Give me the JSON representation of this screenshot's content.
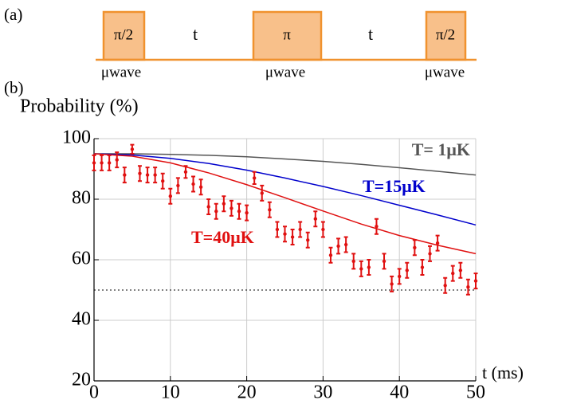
{
  "pulse_diagram": {
    "label": "(a)",
    "pulses": [
      "π/2",
      "π",
      "π/2"
    ],
    "gaps": [
      "t",
      "t"
    ],
    "pulse_labels": [
      "μwave",
      "μwave",
      "μwave"
    ]
  },
  "chart_data": {
    "type": "scatter",
    "panel_label": "(b)",
    "y_label": "Probability (%)",
    "x_label": "t (ms)",
    "xlim": [
      0,
      50
    ],
    "ylim": [
      20,
      100
    ],
    "xticks": [
      0,
      10,
      20,
      30,
      40,
      50
    ],
    "yticks": [
      20,
      40,
      60,
      80,
      100
    ],
    "grid": true,
    "reference_line": 50,
    "x": [
      0,
      5,
      10,
      15,
      20,
      25,
      30,
      35,
      40,
      45,
      50
    ],
    "series": [
      {
        "name": "T= 1μK",
        "color": "#555555",
        "values": [
          95,
          95,
          94.8,
          94.5,
          94,
          93.3,
          92.5,
          91.5,
          90.4,
          89.2,
          88
        ]
      },
      {
        "name": "T=15μK",
        "color": "#0000cc",
        "values": [
          95,
          94.6,
          93.5,
          91.8,
          89.6,
          87,
          84.2,
          81.2,
          78,
          74.8,
          71.5
        ]
      },
      {
        "name": "T=40μK",
        "color": "#e01010",
        "values": [
          95,
          94.2,
          92,
          88.7,
          84.8,
          80.5,
          76.1,
          71.8,
          68,
          64.8,
          62
        ]
      }
    ],
    "points": {
      "color": "#e01010",
      "x": [
        0,
        1,
        2,
        3,
        4,
        5,
        6,
        7,
        8,
        9,
        10,
        11,
        12,
        13,
        14,
        15,
        16,
        17,
        18,
        19,
        20,
        21,
        22,
        23,
        24,
        25,
        26,
        27,
        28,
        29,
        30,
        31,
        32,
        33,
        34,
        35,
        36,
        37,
        38,
        39,
        40,
        41,
        42,
        43,
        44,
        45,
        46,
        47,
        48,
        49,
        50
      ],
      "values": [
        92,
        92,
        92,
        93,
        88,
        96.5,
        88.5,
        88,
        88,
        86,
        81,
        84.5,
        89,
        85,
        84,
        77.5,
        76,
        78.5,
        77,
        76,
        75.5,
        87,
        82,
        76.5,
        70,
        68.5,
        67.5,
        70,
        66.5,
        73.5,
        70,
        61.5,
        64.5,
        65,
        59.5,
        57,
        57.5,
        71,
        59.5,
        52,
        54.5,
        56.5,
        64,
        57.5,
        62,
        65.5,
        51.5,
        55.5,
        56.5,
        51,
        53
      ],
      "errors": [
        2.5,
        2.5,
        2.5,
        2.5,
        2.5,
        1.5,
        2.5,
        2.5,
        2.5,
        2.5,
        2.5,
        2.5,
        2,
        2.5,
        2.5,
        2.5,
        2.5,
        2.5,
        2.5,
        2.5,
        2.5,
        2,
        2.5,
        2.5,
        2.5,
        2.5,
        2.5,
        2.5,
        2.5,
        2.5,
        2.5,
        2.5,
        2.5,
        2.5,
        2.5,
        2.5,
        2.5,
        2.5,
        2.5,
        2.5,
        2.5,
        2.5,
        2.5,
        2.5,
        2.5,
        2.5,
        2.5,
        2.5,
        2.5,
        2.5,
        2.5
      ]
    }
  }
}
